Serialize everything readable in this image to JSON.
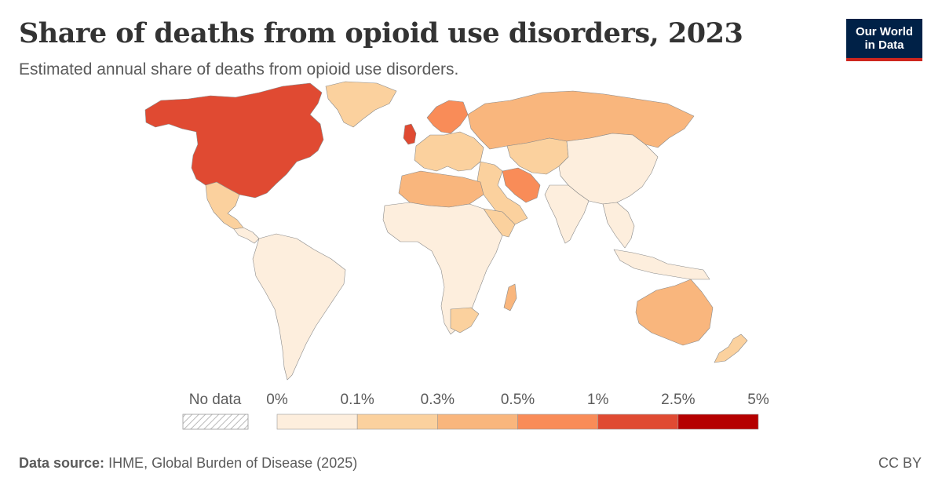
{
  "header": {
    "title": "Share of deaths from opioid use disorders, 2023",
    "subtitle": "Estimated annual share of deaths from opioid use disorders."
  },
  "logo": {
    "line1": "Our World",
    "line2": "in Data"
  },
  "legend": {
    "no_data_label": "No data",
    "ticks": [
      "0%",
      "0.1%",
      "0.3%",
      "0.5%",
      "1%",
      "2.5%",
      "5%"
    ],
    "bins": [
      {
        "from": "0%",
        "to": "0.1%",
        "color": "#fdeedd"
      },
      {
        "from": "0.1%",
        "to": "0.3%",
        "color": "#fbd19e"
      },
      {
        "from": "0.3%",
        "to": "0.5%",
        "color": "#f9b67d"
      },
      {
        "from": "0.5%",
        "to": "1%",
        "color": "#f98c58"
      },
      {
        "from": "1%",
        "to": "2.5%",
        "color": "#e04a32"
      },
      {
        "from": "2.5%",
        "to": "5%",
        "color": "#b50000"
      }
    ]
  },
  "map_regions": [
    {
      "name": "North America (USA, Canada)",
      "bin": 4
    },
    {
      "name": "Greenland",
      "bin": 1
    },
    {
      "name": "Mexico",
      "bin": 1
    },
    {
      "name": "Central America",
      "bin": 0
    },
    {
      "name": "South America",
      "bin": 0
    },
    {
      "name": "United Kingdom",
      "bin": 4
    },
    {
      "name": "Scandinavia",
      "bin": 3
    },
    {
      "name": "Western Europe",
      "bin": 1
    },
    {
      "name": "Russia",
      "bin": 2
    },
    {
      "name": "Iran",
      "bin": 3
    },
    {
      "name": "North Africa",
      "bin": 2
    },
    {
      "name": "Sub-Saharan Africa",
      "bin": 0
    },
    {
      "name": "East Africa",
      "bin": 1
    },
    {
      "name": "Middle East",
      "bin": 1
    },
    {
      "name": "Central Asia",
      "bin": 1
    },
    {
      "name": "China",
      "bin": 0
    },
    {
      "name": "India",
      "bin": 0
    },
    {
      "name": "Southeast Asia",
      "bin": 0
    },
    {
      "name": "Australia",
      "bin": 2
    },
    {
      "name": "New Zealand",
      "bin": 1
    },
    {
      "name": "Madagascar",
      "bin": 2
    },
    {
      "name": "South Africa",
      "bin": 1
    }
  ],
  "footer": {
    "source_label": "Data source:",
    "source_text": "IHME, Global Burden of Disease (2025)",
    "license": "CC BY"
  }
}
